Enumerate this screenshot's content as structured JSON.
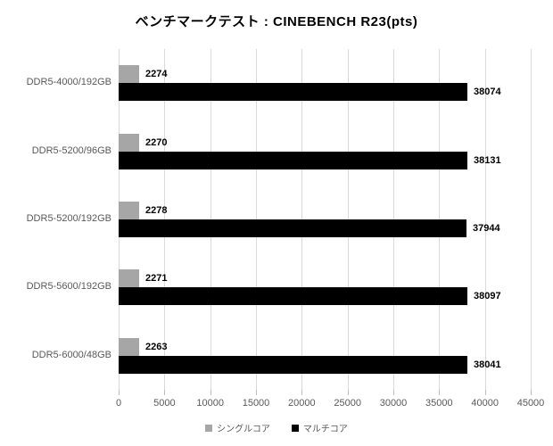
{
  "title": "ベンチマークテスト : CINEBENCH R23(pts)",
  "chart_data": {
    "type": "bar",
    "orientation": "horizontal",
    "title": "ベンチマークテスト : CINEBENCH R23(pts)",
    "categories": [
      "DDR5-4000/192GB",
      "DDR5-5200/96GB",
      "DDR5-5200/192GB",
      "DDR5-5600/192GB",
      "DDR5-6000/48GB"
    ],
    "series": [
      {
        "name": "シングルコア",
        "color": "#a6a6a6",
        "values": [
          2274,
          2270,
          2278,
          2271,
          2263
        ]
      },
      {
        "name": "マルチコア",
        "color": "#000000",
        "values": [
          38074,
          38131,
          37944,
          38097,
          38041
        ]
      }
    ],
    "xlim": [
      0,
      45000
    ],
    "x_ticks": [
      0,
      5000,
      10000,
      15000,
      20000,
      25000,
      30000,
      35000,
      40000,
      45000
    ],
    "grid": true,
    "data_labels": true,
    "legend_position": "bottom"
  },
  "colors": {
    "gridline": "#d9d9d9",
    "tick_mark": "#bfbfbf",
    "axis_text": "#595959",
    "value_label_text": "#000000",
    "background": "#ffffff"
  }
}
